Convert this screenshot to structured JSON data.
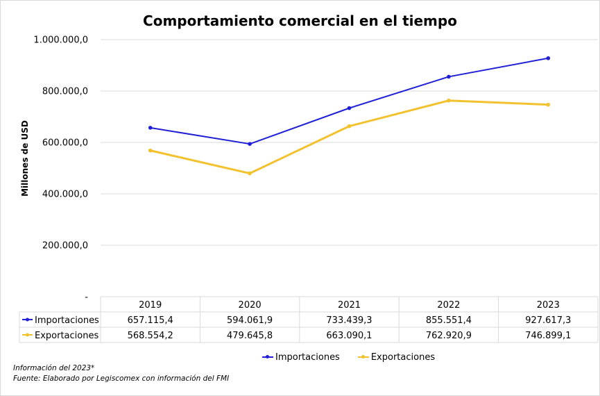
{
  "chart_data": {
    "type": "line",
    "title": "Comportamiento comercial en el tiempo",
    "ylabel": "Millones de USD",
    "xlabel": "",
    "categories": [
      "2019",
      "2020",
      "2021",
      "2022",
      "2023"
    ],
    "ylim": [
      0,
      1000000
    ],
    "y_ticks": [
      "-",
      "200.000,0",
      "400.000,0",
      "600.000,0",
      "800.000,0",
      "1.000.000,0"
    ],
    "grid": true,
    "legend_position": "bottom",
    "series": [
      {
        "name": "Importaciones",
        "color": "#1f1fd6",
        "values": [
          657115.4,
          594061.9,
          733439.3,
          855551.4,
          927617.3
        ],
        "labels": [
          "657.115,4",
          "594.061,9",
          "733.439,3",
          "855.551,4",
          "927.617,3"
        ]
      },
      {
        "name": "Exportaciones",
        "color": "#f2c12e",
        "values": [
          568554.2,
          479645.8,
          663090.1,
          762920.9,
          746899.1
        ],
        "labels": [
          "568.554,2",
          "479.645,8",
          "663.090,1",
          "762.920,9",
          "746.899,1"
        ]
      }
    ]
  },
  "notes": {
    "line1": "Información del 2023*",
    "line2": "Fuente: Elaborado por Legiscomex con información del FMI"
  }
}
